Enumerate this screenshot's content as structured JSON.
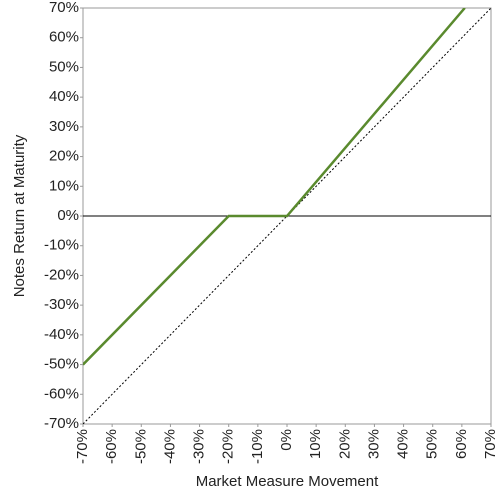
{
  "chart_data": {
    "type": "line",
    "x_label": "Market Measure Movement",
    "y_label": "Notes Return at Maturity",
    "x": [
      -70,
      -20,
      0,
      61
    ],
    "values": [
      -50,
      0,
      0,
      70
    ],
    "color": "#5a8a2e",
    "reference_line": {
      "x": [
        -70,
        70
      ],
      "values": [
        -70,
        70
      ],
      "color": "#000000"
    },
    "xlim": [
      -70,
      70
    ],
    "ylim": [
      -70,
      70
    ],
    "xticks": [
      {
        "value": -70,
        "label": "-70%"
      },
      {
        "value": -60,
        "label": "-60%"
      },
      {
        "value": -50,
        "label": "-50%"
      },
      {
        "value": -40,
        "label": "-40%"
      },
      {
        "value": -30,
        "label": "-30%"
      },
      {
        "value": -20,
        "label": "-20%"
      },
      {
        "value": -10,
        "label": "-10%"
      },
      {
        "value": 0,
        "label": "0%"
      },
      {
        "value": 10,
        "label": "10%"
      },
      {
        "value": 20,
        "label": "20%"
      },
      {
        "value": 30,
        "label": "30%"
      },
      {
        "value": 40,
        "label": "40%"
      },
      {
        "value": 50,
        "label": "50%"
      },
      {
        "value": 60,
        "label": "60%"
      },
      {
        "value": 70,
        "label": "70%"
      }
    ],
    "yticks": [
      {
        "value": 70,
        "label": "70%"
      },
      {
        "value": 60,
        "label": "60%"
      },
      {
        "value": 50,
        "label": "50%"
      },
      {
        "value": 40,
        "label": "40%"
      },
      {
        "value": 30,
        "label": "30%"
      },
      {
        "value": 20,
        "label": "20%"
      },
      {
        "value": 10,
        "label": "10%"
      },
      {
        "value": 0,
        "label": "0%"
      },
      {
        "value": -10,
        "label": "-10%"
      },
      {
        "value": -20,
        "label": "-20%"
      },
      {
        "value": -30,
        "label": "-30%"
      },
      {
        "value": -40,
        "label": "-40%"
      },
      {
        "value": -50,
        "label": "-50%"
      },
      {
        "value": -60,
        "label": "-60%"
      },
      {
        "value": -70,
        "label": "-70%"
      }
    ]
  }
}
